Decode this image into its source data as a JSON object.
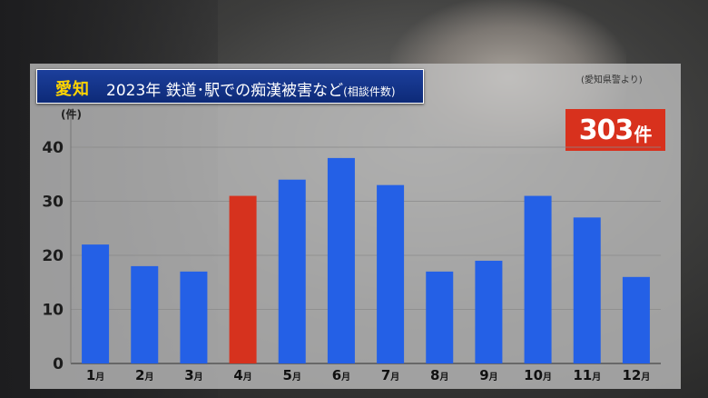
{
  "title": {
    "region": "愛知",
    "text": "2023年 鉄道･駅での痴漢被害など",
    "subtext": "(相談件数)"
  },
  "source": "(愛知県警より)",
  "total": {
    "value": "303",
    "unit": "件"
  },
  "colors": {
    "bar": "#2460e6",
    "highlight": "#d6321e",
    "title_bg": "#143a8f",
    "region_text": "#ffd400",
    "badge": "#d8311d"
  },
  "chart_data": {
    "type": "bar",
    "ylabel": "(件)",
    "ylim": [
      0,
      40
    ],
    "yticks": [
      "0",
      "10",
      "20",
      "30",
      "40"
    ],
    "grid": true,
    "categories": [
      "1",
      "2",
      "3",
      "4",
      "5",
      "6",
      "7",
      "8",
      "9",
      "10",
      "11",
      "12"
    ],
    "category_unit": "月",
    "values": [
      22,
      18,
      17,
      31,
      34,
      38,
      33,
      17,
      19,
      31,
      27,
      16
    ],
    "highlight_index": 3
  }
}
